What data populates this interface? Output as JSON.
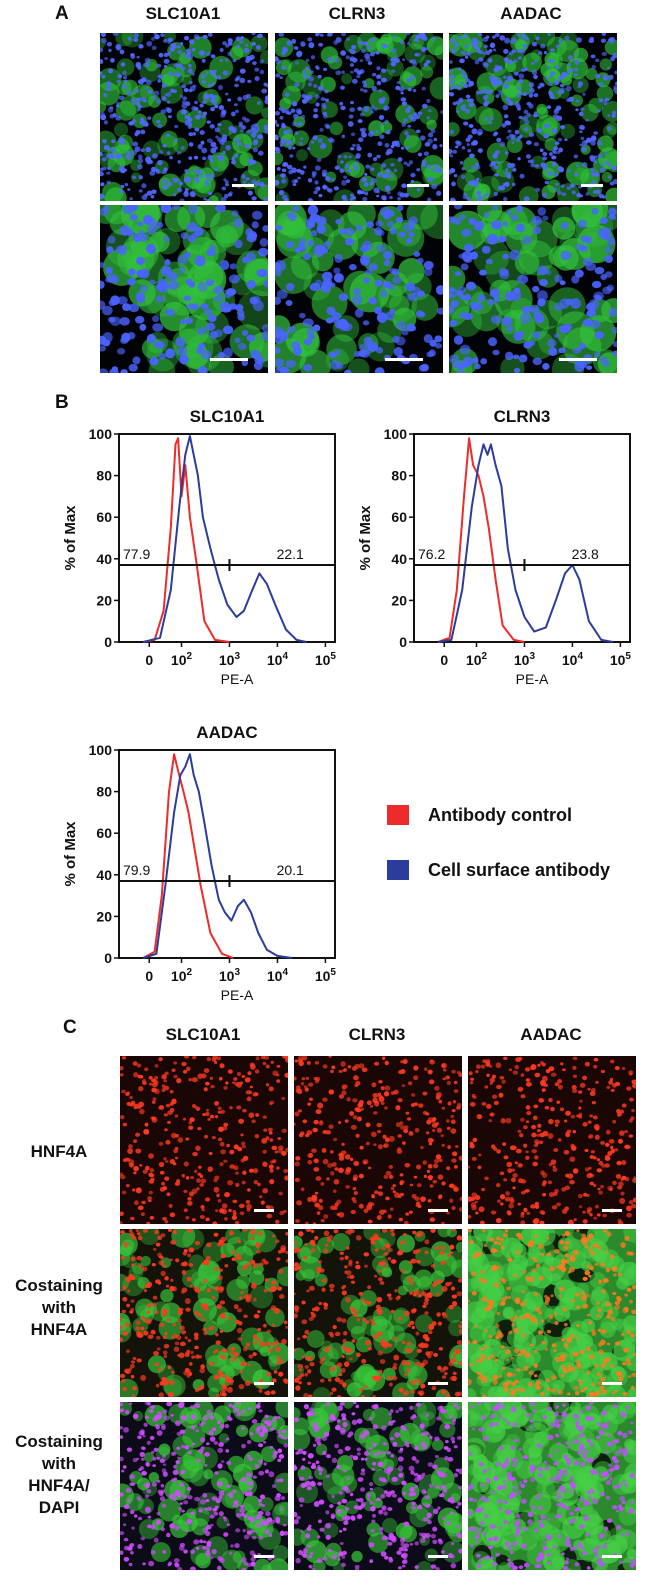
{
  "panel_a": {
    "letter": "A",
    "columns": [
      "SLC10A1",
      "CLRN3",
      "AADAC"
    ]
  },
  "panel_b": {
    "letter": "B",
    "legend": [
      {
        "label": "Antibody control",
        "color": "#ee2b2b"
      },
      {
        "label": "Cell surface antibody",
        "color": "#2b3c9c"
      }
    ]
  },
  "panel_c": {
    "letter": "C",
    "columns": [
      "SLC10A1",
      "CLRN3",
      "AADAC"
    ],
    "rows": [
      {
        "label_lines": [
          "HNF4A"
        ]
      },
      {
        "label_lines": [
          "Costaining",
          "with",
          "HNF4A"
        ]
      },
      {
        "label_lines": [
          "Costaining",
          "with",
          "HNF4A/",
          "DAPI"
        ]
      }
    ]
  },
  "chart_data": [
    {
      "type": "line",
      "title": "SLC10A1",
      "xlabel": "PE-A",
      "ylabel": "% of Max",
      "x_scale": "biexponential",
      "x_tick_labels": [
        "0",
        "10^2",
        "10^3",
        "10^4",
        "10^5"
      ],
      "y_ticks": [
        0,
        20,
        40,
        60,
        80,
        100
      ],
      "ylim": [
        0,
        100
      ],
      "gate_values": {
        "left": "77.9",
        "right": "22.1"
      },
      "series": [
        {
          "name": "Antibody control",
          "color": "#ee2b2b",
          "points": [
            [
              -20,
              0
            ],
            [
              15,
              1
            ],
            [
              40,
              15
            ],
            [
              60,
              55
            ],
            [
              75,
              95
            ],
            [
              85,
              98
            ],
            [
              100,
              70
            ],
            [
              120,
              85
            ],
            [
              150,
              60
            ],
            [
              200,
              40
            ],
            [
              300,
              10
            ],
            [
              500,
              1
            ],
            [
              1000,
              0
            ]
          ]
        },
        {
          "name": "Cell surface antibody",
          "color": "#2b3c9c",
          "points": [
            [
              -20,
              0
            ],
            [
              30,
              2
            ],
            [
              60,
              25
            ],
            [
              90,
              65
            ],
            [
              120,
              90
            ],
            [
              150,
              99
            ],
            [
              180,
              90
            ],
            [
              220,
              80
            ],
            [
              280,
              60
            ],
            [
              400,
              45
            ],
            [
              600,
              30
            ],
            [
              900,
              18
            ],
            [
              1400,
              12
            ],
            [
              2000,
              15
            ],
            [
              3000,
              25
            ],
            [
              4200,
              33
            ],
            [
              6000,
              28
            ],
            [
              9000,
              18
            ],
            [
              15000,
              6
            ],
            [
              25000,
              1
            ],
            [
              40000,
              0
            ]
          ]
        }
      ]
    },
    {
      "type": "line",
      "title": "CLRN3",
      "xlabel": "PE-A",
      "ylabel": "% of Max",
      "x_scale": "biexponential",
      "x_tick_labels": [
        "0",
        "10^2",
        "10^3",
        "10^4",
        "10^5"
      ],
      "y_ticks": [
        0,
        20,
        40,
        60,
        80,
        100
      ],
      "ylim": [
        0,
        100
      ],
      "gate_values": {
        "left": "76.2",
        "right": "23.8"
      },
      "series": [
        {
          "name": "Antibody control",
          "color": "#ee2b2b",
          "points": [
            [
              -20,
              0
            ],
            [
              15,
              2
            ],
            [
              35,
              25
            ],
            [
              55,
              70
            ],
            [
              70,
              98
            ],
            [
              85,
              85
            ],
            [
              110,
              80
            ],
            [
              140,
              70
            ],
            [
              180,
              55
            ],
            [
              250,
              30
            ],
            [
              350,
              8
            ],
            [
              600,
              1
            ],
            [
              1000,
              0
            ]
          ]
        },
        {
          "name": "Cell surface antibody",
          "color": "#2b3c9c",
          "points": [
            [
              -20,
              0
            ],
            [
              20,
              1
            ],
            [
              50,
              25
            ],
            [
              80,
              65
            ],
            [
              110,
              85
            ],
            [
              140,
              95
            ],
            [
              170,
              90
            ],
            [
              200,
              95
            ],
            [
              250,
              85
            ],
            [
              330,
              75
            ],
            [
              450,
              45
            ],
            [
              650,
              25
            ],
            [
              1000,
              12
            ],
            [
              1600,
              5
            ],
            [
              2800,
              7
            ],
            [
              4500,
              20
            ],
            [
              7000,
              33
            ],
            [
              10000,
              37
            ],
            [
              14000,
              30
            ],
            [
              22000,
              10
            ],
            [
              40000,
              1
            ],
            [
              70000,
              0
            ]
          ]
        }
      ]
    },
    {
      "type": "line",
      "title": "AADAC",
      "xlabel": "PE-A",
      "ylabel": "% of Max",
      "x_scale": "biexponential",
      "x_tick_labels": [
        "0",
        "10^2",
        "10^3",
        "10^4",
        "10^5"
      ],
      "y_ticks": [
        0,
        20,
        40,
        60,
        80,
        100
      ],
      "ylim": [
        0,
        100
      ],
      "gate_values": {
        "left": "79.9",
        "right": "20.1"
      },
      "series": [
        {
          "name": "Antibody control",
          "color": "#ee2b2b",
          "points": [
            [
              -20,
              0
            ],
            [
              15,
              3
            ],
            [
              35,
              30
            ],
            [
              55,
              80
            ],
            [
              70,
              98
            ],
            [
              85,
              90
            ],
            [
              110,
              80
            ],
            [
              140,
              70
            ],
            [
              180,
              55
            ],
            [
              250,
              35
            ],
            [
              400,
              12
            ],
            [
              700,
              2
            ],
            [
              1200,
              0
            ]
          ]
        },
        {
          "name": "Cell surface antibody",
          "color": "#2b3c9c",
          "points": [
            [
              -20,
              0
            ],
            [
              20,
              2
            ],
            [
              45,
              35
            ],
            [
              70,
              70
            ],
            [
              95,
              88
            ],
            [
              120,
              92
            ],
            [
              150,
              98
            ],
            [
              180,
              88
            ],
            [
              230,
              80
            ],
            [
              300,
              65
            ],
            [
              420,
              45
            ],
            [
              600,
              28
            ],
            [
              800,
              22
            ],
            [
              1100,
              18
            ],
            [
              1500,
              25
            ],
            [
              2000,
              28
            ],
            [
              2800,
              22
            ],
            [
              4000,
              12
            ],
            [
              6000,
              4
            ],
            [
              10000,
              1
            ],
            [
              20000,
              0
            ]
          ]
        }
      ]
    }
  ]
}
